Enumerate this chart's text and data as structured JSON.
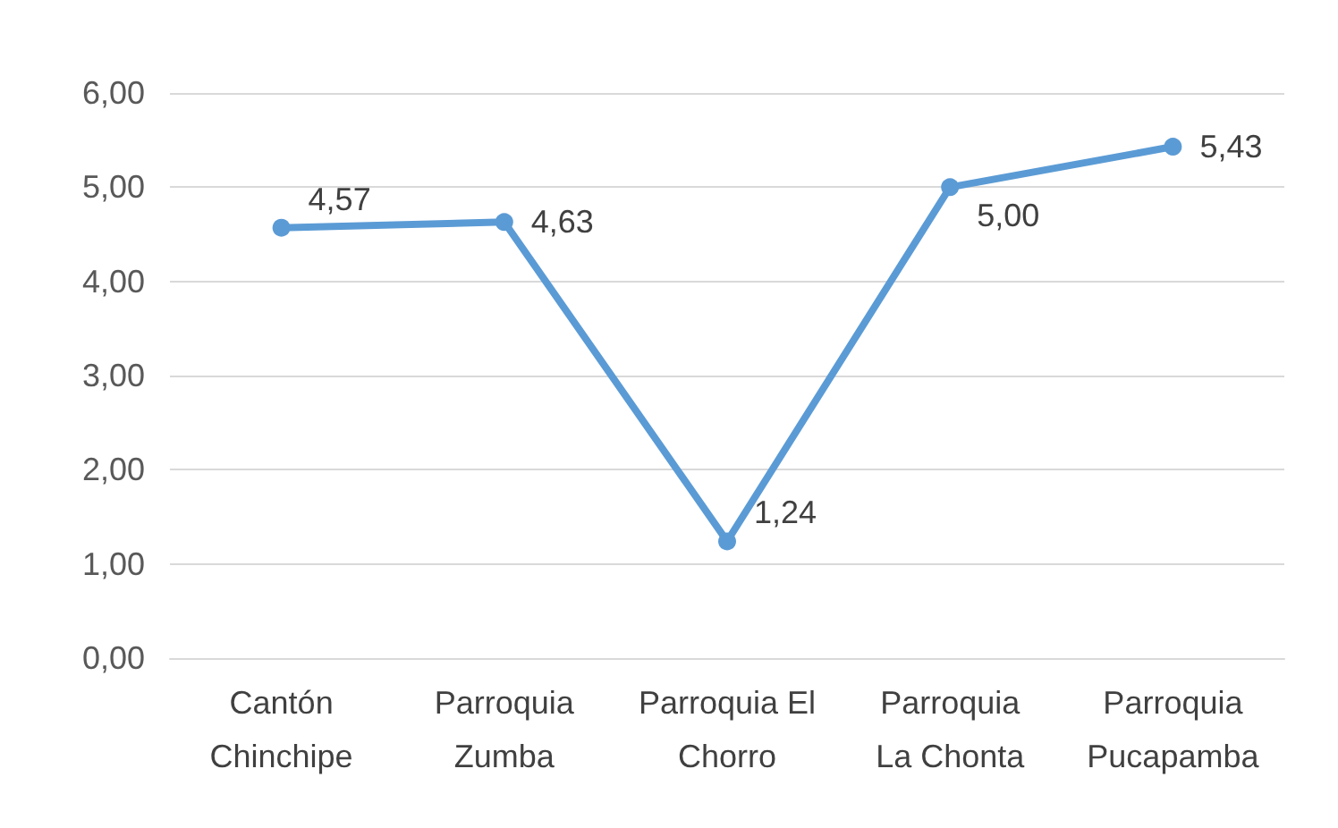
{
  "chart_data": {
    "type": "line",
    "categories": [
      "Cantón\nChinchipe",
      "Parroquia\nZumba",
      "Parroquia El\nChorro",
      "Parroquia\nLa Chonta",
      "Parroquia\nPucapamba"
    ],
    "series": [
      {
        "color": "#5b9bd5",
        "values": [
          4.57,
          4.63,
          1.24,
          5.0,
          5.43
        ],
        "value_labels": [
          "4,57",
          "4,63",
          "1,24",
          "5,00",
          "5,43"
        ]
      }
    ],
    "ylim": [
      0,
      6
    ],
    "yticks": [
      {
        "value": 0,
        "label": "0,00"
      },
      {
        "value": 1,
        "label": "1,00"
      },
      {
        "value": 2,
        "label": "2,00"
      },
      {
        "value": 3,
        "label": "3,00"
      },
      {
        "value": 4,
        "label": "4,00"
      },
      {
        "value": 5,
        "label": "5,00"
      },
      {
        "value": 6,
        "label": "6,00"
      }
    ],
    "grid": "y",
    "marker": "circle",
    "line_style": "solid"
  }
}
